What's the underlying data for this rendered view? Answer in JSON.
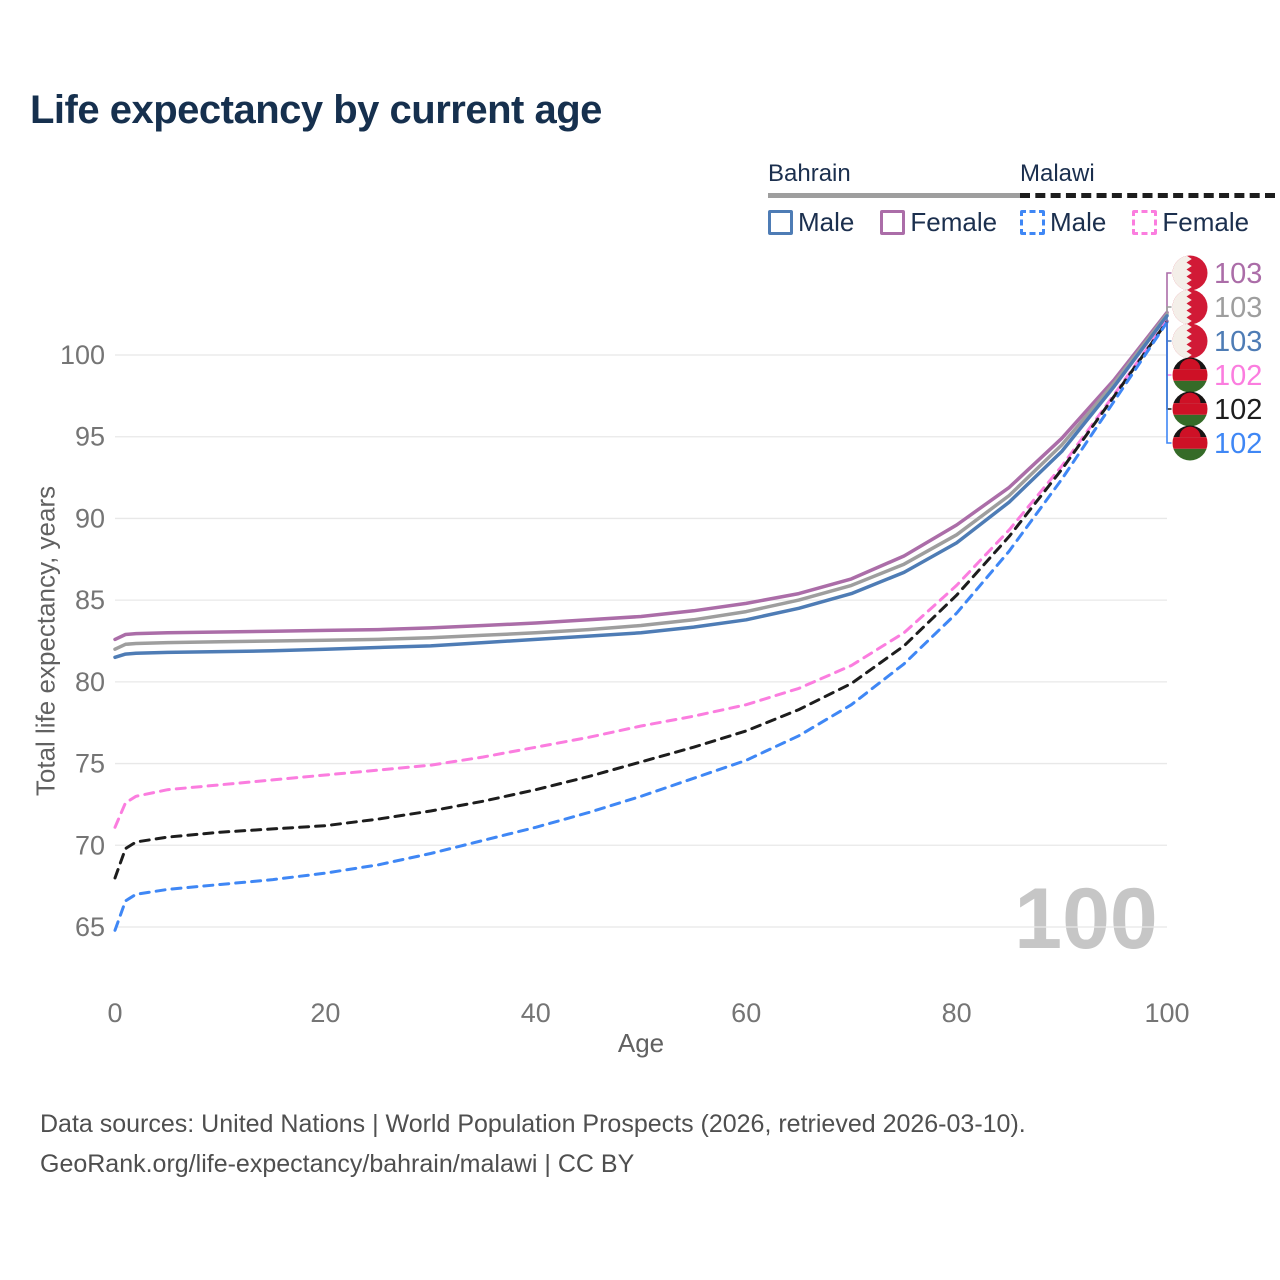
{
  "title": "Life expectancy by current age",
  "legend": {
    "groups": [
      {
        "label": "Bahrain",
        "line_style": "solid",
        "swatch_color": "#9e9e9e",
        "items": [
          {
            "label": "Male",
            "color": "#4e7cb5"
          },
          {
            "label": "Female",
            "color": "#ab6da8"
          }
        ]
      },
      {
        "label": "Malawi",
        "line_style": "dashed",
        "swatch_color": "#1d1d1d",
        "items": [
          {
            "label": "Male",
            "color": "#3f87f5"
          },
          {
            "label": "Female",
            "color": "#fb7ddf"
          }
        ]
      }
    ]
  },
  "watermark": "100",
  "footer": {
    "line1": "Data sources: United Nations | World Population Prospects (2026, retrieved 2026-03-10).",
    "line2": "GeoRank.org/life-expectancy/bahrain/malawi | CC BY"
  },
  "flags": {
    "bahrain": {
      "white": "#f4efe9",
      "red": "#d11a36"
    },
    "malawi": {
      "black": "#181414",
      "red": "#ce1126",
      "green": "#356b28"
    }
  },
  "chart_data": {
    "type": "line",
    "title": "Life expectancy by current age",
    "xlabel": "Age",
    "ylabel": "Total life expectancy, years",
    "xlim": [
      0,
      100
    ],
    "ylim": [
      63.5,
      104.5
    ],
    "xticks": [
      0,
      20,
      40,
      60,
      80,
      100
    ],
    "yticks": [
      65,
      70,
      75,
      80,
      85,
      90,
      95,
      100
    ],
    "grid": "horizontal-only",
    "legend_position": "top-right",
    "x": [
      0,
      1,
      2,
      5,
      10,
      15,
      20,
      25,
      30,
      35,
      40,
      45,
      50,
      55,
      60,
      65,
      70,
      75,
      80,
      85,
      90,
      95,
      100
    ],
    "series": [
      {
        "id": "bahrain-female",
        "name": "Bahrain Female",
        "country": "Bahrain",
        "sex": "Female",
        "color": "#ab6da8",
        "line": "solid",
        "flag": "bahrain",
        "end_label": "103",
        "y": [
          82.6,
          82.9,
          82.95,
          83.0,
          83.05,
          83.1,
          83.15,
          83.2,
          83.3,
          83.45,
          83.6,
          83.8,
          84.0,
          84.35,
          84.8,
          85.4,
          86.3,
          87.7,
          89.6,
          91.9,
          94.9,
          98.5,
          102.6
        ]
      },
      {
        "id": "bahrain-total",
        "name": "Bahrain Both sexes",
        "country": "Bahrain",
        "sex": "Both",
        "color": "#9e9e9e",
        "line": "solid",
        "flag": "bahrain",
        "end_label": "103",
        "y": [
          82.0,
          82.3,
          82.35,
          82.4,
          82.45,
          82.5,
          82.55,
          82.6,
          82.7,
          82.85,
          83.0,
          83.2,
          83.45,
          83.8,
          84.3,
          85.0,
          85.9,
          87.2,
          89.0,
          91.4,
          94.5,
          98.3,
          102.5
        ]
      },
      {
        "id": "bahrain-male",
        "name": "Bahrain Male",
        "country": "Bahrain",
        "sex": "Male",
        "color": "#4e7cb5",
        "line": "solid",
        "flag": "bahrain",
        "end_label": "103",
        "y": [
          81.5,
          81.7,
          81.75,
          81.8,
          81.85,
          81.9,
          82.0,
          82.1,
          82.2,
          82.4,
          82.6,
          82.8,
          83.0,
          83.35,
          83.8,
          84.5,
          85.4,
          86.7,
          88.5,
          91.0,
          94.1,
          98.1,
          102.4
        ]
      },
      {
        "id": "malawi-female",
        "name": "Malawi Female",
        "country": "Malawi",
        "sex": "Female",
        "color": "#fb7ddf",
        "line": "dashed",
        "flag": "malawi",
        "end_label": "102",
        "y": [
          71.1,
          72.6,
          73.0,
          73.4,
          73.7,
          74.0,
          74.3,
          74.6,
          74.9,
          75.4,
          76.0,
          76.6,
          77.3,
          77.9,
          78.6,
          79.6,
          81.0,
          83.0,
          85.9,
          89.3,
          93.2,
          97.6,
          102.1
        ]
      },
      {
        "id": "malawi-total",
        "name": "Malawi Both sexes",
        "country": "Malawi",
        "sex": "Both",
        "color": "#1d1d1d",
        "line": "dashed",
        "flag": "malawi",
        "end_label": "102",
        "y": [
          68.0,
          69.8,
          70.2,
          70.5,
          70.8,
          71.0,
          71.2,
          71.6,
          72.1,
          72.7,
          73.4,
          74.2,
          75.1,
          76.0,
          77.0,
          78.3,
          79.9,
          82.2,
          85.3,
          88.9,
          93.0,
          97.5,
          102.05
        ]
      },
      {
        "id": "malawi-male",
        "name": "Malawi Male",
        "country": "Malawi",
        "sex": "Male",
        "color": "#3f87f5",
        "line": "dashed",
        "flag": "malawi",
        "end_label": "102",
        "y": [
          64.8,
          66.6,
          67.0,
          67.3,
          67.6,
          67.9,
          68.3,
          68.8,
          69.5,
          70.3,
          71.1,
          72.0,
          73.0,
          74.1,
          75.2,
          76.7,
          78.6,
          81.1,
          84.2,
          88.0,
          92.4,
          97.2,
          102.0
        ]
      }
    ]
  }
}
